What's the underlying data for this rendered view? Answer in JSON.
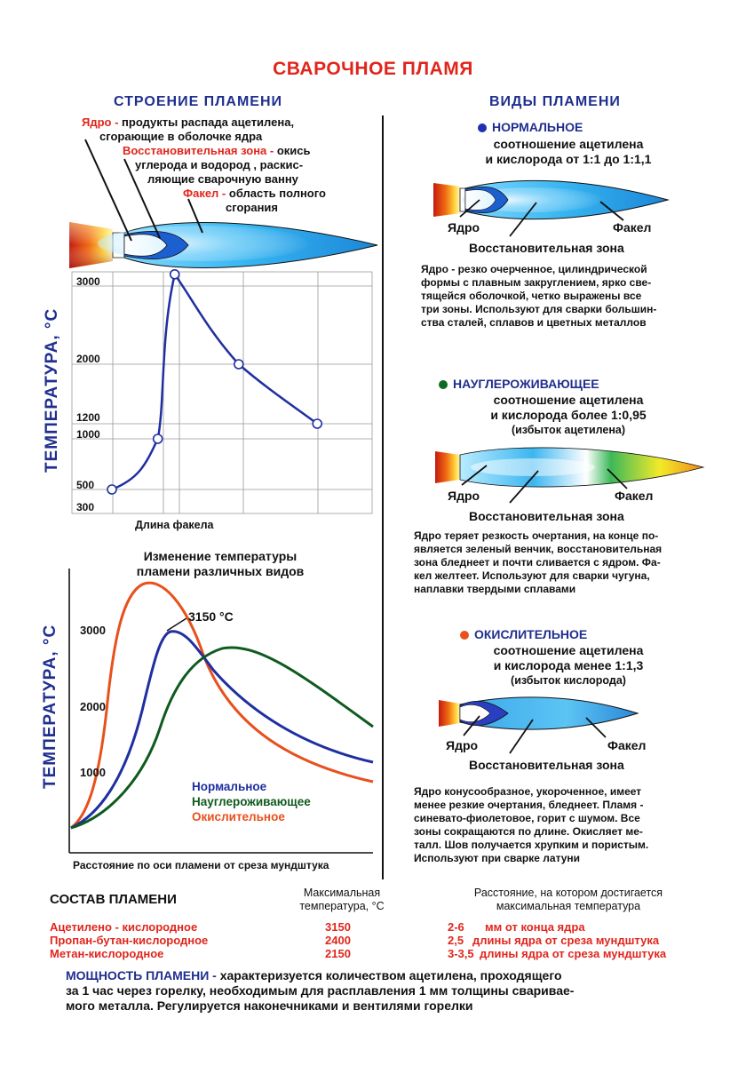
{
  "title": "СВАРОЧНОЕ ПЛАМЯ",
  "structure": {
    "heading": "СТРОЕНИЕ ПЛАМЕНИ",
    "core_term": "Ядро -",
    "core_text1": "продукты распада ацетилена,",
    "core_text2": "сгорающие в оболочке ядра",
    "reduce_term": "Восстановительная зона -",
    "reduce_text1": "окись",
    "reduce_text2": "углерода и водород , раскис-",
    "reduce_text3": "ляющие сварочную ванну",
    "torch_term": "Факел -",
    "torch_text1": "область полного",
    "torch_text2": "сгорания"
  },
  "chart1": {
    "ylabel": "ТЕМПЕРАТУРА, °С",
    "xlabel": "Длина факела",
    "ticks": [
      "3000",
      "2000",
      "1200",
      "1000",
      "500",
      "300"
    ]
  },
  "chart_data": [
    {
      "type": "line",
      "xlabel": "Длина факела",
      "ylabel": "ТЕМПЕРАТУРА, °С",
      "yticks": [
        300,
        500,
        1000,
        1200,
        2000,
        3000
      ],
      "series": [
        {
          "points": [
            [
              0.0,
              500
            ],
            [
              0.38,
              1000
            ],
            [
              0.52,
              3150
            ],
            [
              1.05,
              2000
            ],
            [
              1.7,
              1200
            ]
          ]
        }
      ]
    },
    {
      "type": "line",
      "title": "Изменение температуры пламени различных видов",
      "xlabel": "Расстояние по оси пламени от среза мундштука",
      "ylabel": "ТЕМПЕРАТУРА, °С",
      "yticks": [
        1000,
        2000,
        3000
      ],
      "annotation": "3150 °С",
      "series": [
        {
          "name": "Нормальное",
          "color": "#1f2fa0"
        },
        {
          "name": "Науглероживающее",
          "color": "#0f5a1e"
        },
        {
          "name": "Окислительное",
          "color": "#e8501c"
        }
      ]
    }
  ],
  "chart2": {
    "title1": "Изменение температуры",
    "title2": "пламени различных видов",
    "ylabel": "ТЕМПЕРАТУРА, °С",
    "annotation": "3150 °С",
    "ticks": [
      "3000",
      "2000",
      "1000"
    ],
    "xlabel": "Расстояние по оси пламени от среза мундштука",
    "legend": [
      "Нормальное",
      "Науглероживающее",
      "Окислительное"
    ]
  },
  "types": {
    "heading": "ВИДЫ ПЛАМЕНИ",
    "normal": {
      "name": "НОРМАЛЬНОЕ",
      "ratio1": "соотношение ацетилена",
      "ratio2": "и кислорода от 1:1 до 1:1,1",
      "core": "Ядро",
      "torch": "Факел",
      "zone": "Восстановительная зона",
      "d1": "Ядро - резко очерченное, цилиндрической",
      "d2": "формы с плавным закруглением, ярко све-",
      "d3": "тящейся оболочкой, четко выражены все",
      "d4": "три зоны. Используют для сварки большин-",
      "d5": "ства сталей, сплавов и цветных металлов"
    },
    "carb": {
      "name": "НАУГЛЕРОЖИВАЮЩЕЕ",
      "ratio1": "соотношение ацетилена",
      "ratio2": "и кислорода более 1:0,95",
      "note": "(избыток ацетилена)",
      "core": "Ядро",
      "torch": "Факел",
      "zone": "Восстановительная зона",
      "d1": "Ядро теряет резкость очертания, на конце по-",
      "d2": "является зеленый венчик, восстановительная",
      "d3": "зона бледнеет и почти сливается с ядром. Фа-",
      "d4": "кел желтеет. Используют для сварки чугуна,",
      "d5": "наплавки твердыми сплавами"
    },
    "oxid": {
      "name": "ОКИСЛИТЕЛЬНОЕ",
      "ratio1": "соотношение ацетилена",
      "ratio2": "и кислорода менее 1:1,3",
      "note": "(избыток кислорода)",
      "core": "Ядро",
      "torch": "Факел",
      "zone": "Восстановительная зона",
      "d1": "Ядро конусообразное, укороченное, имеет",
      "d2": "менее резкие очертания, бледнеет. Пламя -",
      "d3": "синевато-фиолетовое, горит с шумом. Все",
      "d4": "зоны сокращаются по длине. Окисляет ме-",
      "d5": "талл. Шов получается хрупким и пористым.",
      "d6": "Используют при сварке латуни"
    }
  },
  "composition": {
    "heading": "СОСТАВ ПЛАМЕНИ",
    "col2_1": "Максимальная",
    "col2_2": "температура, °С",
    "col3_1": "Расстояние, на котором достигается",
    "col3_2": "максимальная температура",
    "rows": [
      {
        "name": "Ацетилено - кислородное",
        "temp": "3150",
        "dist_n": "2-6",
        "dist_t": "мм от конца ядра"
      },
      {
        "name": "Пропан-бутан-кислородное",
        "temp": "2400",
        "dist_n": "2,5",
        "dist_t": "длины ядра от среза мундштука"
      },
      {
        "name": "Метан-кислородное",
        "temp": "2150",
        "dist_n": "3-3,5",
        "dist_t": "длины ядра от среза мундштука"
      }
    ]
  },
  "power": {
    "term": "МОЩНОСТЬ ПЛАМЕНИ -",
    "text1": "характеризуется количеством ацетилена, проходящего",
    "text2": "за 1 час через горелку, необходимым для расплавления 1 мм толщины сваривае-",
    "text3": "мого металла. Регулируется наконечниками и вентилями горелки"
  },
  "colors": {
    "red": "#e0261c",
    "navy": "#1f2f8f",
    "normal_line": "#1f2fa0",
    "carb_line": "#0f5a1e",
    "oxid_line": "#e8501c"
  }
}
